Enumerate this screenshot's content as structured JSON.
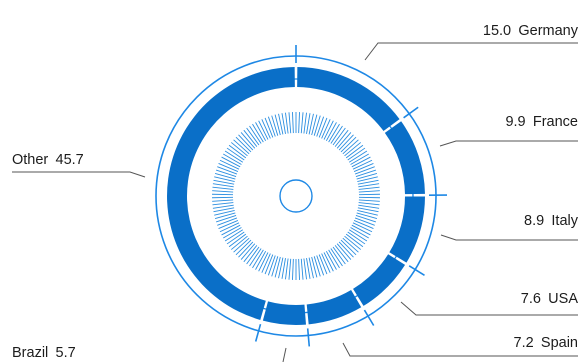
{
  "chart_data": {
    "type": "pie",
    "variant": "donut",
    "title": "",
    "value_format": "one decimal",
    "slices": [
      {
        "label": "Germany",
        "value": 15.0
      },
      {
        "label": "France",
        "value": 9.9
      },
      {
        "label": "Italy",
        "value": 8.9
      },
      {
        "label": "USA",
        "value": 7.6
      },
      {
        "label": "Spain",
        "value": 7.2
      },
      {
        "label": "Brazil",
        "value": 5.7
      },
      {
        "label": "Other",
        "value": 45.7
      }
    ],
    "colors": {
      "slice": "#0a6fc8",
      "outline": "#1e88e5",
      "leader": "#555555",
      "text": "#1c1c1c"
    }
  }
}
